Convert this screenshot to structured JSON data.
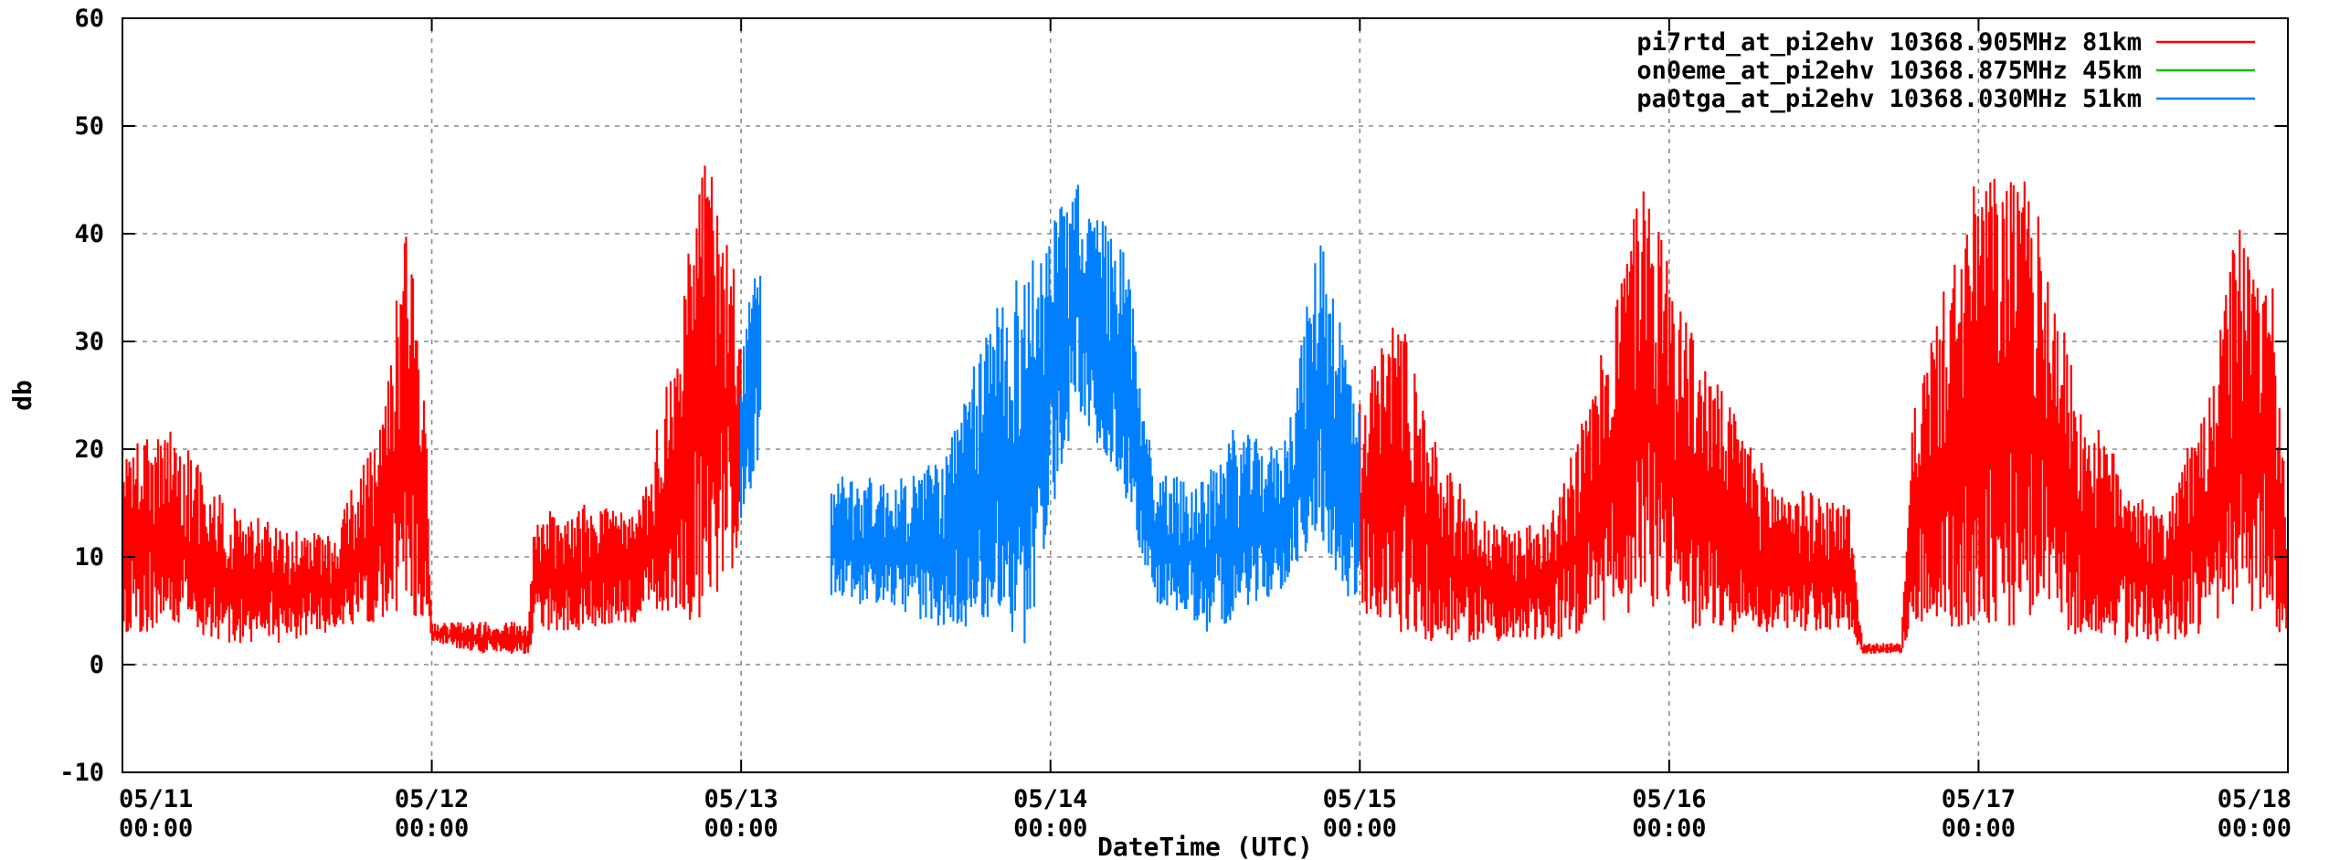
{
  "chart_data": {
    "type": "line",
    "title": "",
    "xlabel": "DateTime (UTC)",
    "ylabel": "db",
    "ylim": [
      -10,
      60
    ],
    "yticks": [
      -10,
      0,
      10,
      20,
      30,
      40,
      50,
      60
    ],
    "xlim": [
      "05/11 00:00",
      "05/18 00:00"
    ],
    "xticks": [
      {
        "day": 0,
        "date": "05/11",
        "time": "00:00"
      },
      {
        "day": 1,
        "date": "05/12",
        "time": "00:00"
      },
      {
        "day": 2,
        "date": "05/13",
        "time": "00:00"
      },
      {
        "day": 3,
        "date": "05/14",
        "time": "00:00"
      },
      {
        "day": 4,
        "date": "05/15",
        "time": "00:00"
      },
      {
        "day": 5,
        "date": "05/16",
        "time": "00:00"
      },
      {
        "day": 6,
        "date": "05/17",
        "time": "00:00"
      },
      {
        "day": 7,
        "date": "05/18",
        "time": "00:00"
      }
    ],
    "grid": true,
    "legend_position": "top-right",
    "series": [
      {
        "name": "pi7rtd_at_pi2ehv 10368.905MHz 81km",
        "color": "#ff0000",
        "segments": [
          [
            {
              "x": "05/11 00:00",
              "y_low": 3,
              "y_high": 20
            },
            {
              "x": "05/11 04:00",
              "y_low": 3,
              "y_high": 22
            },
            {
              "x": "05/11 08:00",
              "y_low": 2,
              "y_high": 15
            },
            {
              "x": "05/11 12:00",
              "y_low": 2,
              "y_high": 13
            },
            {
              "x": "05/11 16:00",
              "y_low": 3,
              "y_high": 12
            },
            {
              "x": "05/11 20:00",
              "y_low": 4,
              "y_high": 22
            },
            {
              "x": "05/11 22:00",
              "y_low": 5,
              "y_high": 42
            },
            {
              "x": "05/11 23:30",
              "y_low": 4,
              "y_high": 25
            },
            {
              "x": "05/12 00:00",
              "y_low": 2,
              "y_high": 4
            },
            {
              "x": "05/12 04:00",
              "y_low": 1,
              "y_high": 4
            },
            {
              "x": "05/12 07:30",
              "y_low": 1,
              "y_high": 4
            },
            {
              "x": "05/12 08:00",
              "y_low": 3,
              "y_high": 14
            },
            {
              "x": "05/12 12:00",
              "y_low": 3,
              "y_high": 15
            },
            {
              "x": "05/12 16:00",
              "y_low": 4,
              "y_high": 14
            },
            {
              "x": "05/12 19:00",
              "y_low": 5,
              "y_high": 30
            },
            {
              "x": "05/12 21:00",
              "y_low": 3,
              "y_high": 48
            },
            {
              "x": "05/12 23:00",
              "y_low": 8,
              "y_high": 44
            },
            {
              "x": "05/13 00:00",
              "y_low": 10,
              "y_high": 30
            }
          ],
          [
            {
              "x": "05/15 00:00",
              "y_low": 5,
              "y_high": 25
            },
            {
              "x": "05/15 03:00",
              "y_low": 3,
              "y_high": 34
            },
            {
              "x": "05/15 06:00",
              "y_low": 2,
              "y_high": 20
            },
            {
              "x": "05/15 10:00",
              "y_low": 2,
              "y_high": 13
            },
            {
              "x": "05/15 14:00",
              "y_low": 2,
              "y_high": 13
            },
            {
              "x": "05/15 18:00",
              "y_low": 3,
              "y_high": 25
            },
            {
              "x": "05/15 22:00",
              "y_low": 5,
              "y_high": 46
            },
            {
              "x": "05/16 02:00",
              "y_low": 3,
              "y_high": 30
            },
            {
              "x": "05/16 08:00",
              "y_low": 3,
              "y_high": 17
            },
            {
              "x": "05/16 14:00",
              "y_low": 3,
              "y_high": 15
            },
            {
              "x": "05/16 15:00",
              "y_low": 1,
              "y_high": 2
            },
            {
              "x": "05/16 18:00",
              "y_low": 1,
              "y_high": 2
            },
            {
              "x": "05/16 19:00",
              "y_low": 4,
              "y_high": 25
            },
            {
              "x": "05/17 00:00",
              "y_low": 3,
              "y_high": 46
            },
            {
              "x": "05/17 04:00",
              "y_low": 4,
              "y_high": 45
            },
            {
              "x": "05/17 08:00",
              "y_low": 2,
              "y_high": 24
            },
            {
              "x": "05/17 14:00",
              "y_low": 2,
              "y_high": 14
            },
            {
              "x": "05/17 18:00",
              "y_low": 3,
              "y_high": 25
            },
            {
              "x": "05/17 20:00",
              "y_low": 5,
              "y_high": 41
            },
            {
              "x": "05/17 23:00",
              "y_low": 3,
              "y_high": 35
            },
            {
              "x": "05/18 00:00",
              "y_low": 3,
              "y_high": 11
            }
          ]
        ]
      },
      {
        "name": "on0eme_at_pi2ehv 10368.875MHz 45km",
        "color": "#00c000",
        "segments": []
      },
      {
        "name": "pa0tga_at_pi2ehv 10368.030MHz 51km",
        "color": "#0080ff",
        "segments": [
          [
            {
              "x": "05/13 00:00",
              "y_low": 12,
              "y_high": 30
            },
            {
              "x": "05/13 01:30",
              "y_low": 20,
              "y_high": 39
            }
          ],
          [
            {
              "x": "05/13 07:00",
              "y_low": 6,
              "y_high": 18
            },
            {
              "x": "05/13 12:00",
              "y_low": 5,
              "y_high": 17
            },
            {
              "x": "05/13 16:00",
              "y_low": 3,
              "y_high": 20
            },
            {
              "x": "05/13 20:00",
              "y_low": 4,
              "y_high": 35
            },
            {
              "x": "05/13 22:00",
              "y_low": 1,
              "y_high": 37
            },
            {
              "x": "05/14 02:00",
              "y_low": 24,
              "y_high": 45
            },
            {
              "x": "05/14 06:00",
              "y_low": 15,
              "y_high": 38
            },
            {
              "x": "05/14 08:00",
              "y_low": 6,
              "y_high": 18
            },
            {
              "x": "05/14 12:00",
              "y_low": 3,
              "y_high": 17
            },
            {
              "x": "05/14 14:00",
              "y_low": 4,
              "y_high": 22
            },
            {
              "x": "05/14 18:00",
              "y_low": 7,
              "y_high": 20
            },
            {
              "x": "05/14 21:00",
              "y_low": 12,
              "y_high": 41
            },
            {
              "x": "05/15 00:00",
              "y_low": 3,
              "y_high": 24
            }
          ]
        ]
      }
    ]
  }
}
